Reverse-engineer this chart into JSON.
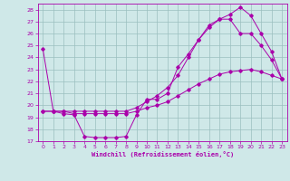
{
  "xlabel": "Windchill (Refroidissement éolien,°C)",
  "bg_color": "#cfe8e8",
  "grid_color": "#9bbfbf",
  "line_color": "#aa00aa",
  "xlim": [
    -0.5,
    23.5
  ],
  "ylim": [
    17,
    28.5
  ],
  "yticks": [
    17,
    18,
    19,
    20,
    21,
    22,
    23,
    24,
    25,
    26,
    27,
    28
  ],
  "xticks": [
    0,
    1,
    2,
    3,
    4,
    5,
    6,
    7,
    8,
    9,
    10,
    11,
    12,
    13,
    14,
    15,
    16,
    17,
    18,
    19,
    20,
    21,
    22,
    23
  ],
  "curve1_x": [
    0,
    1,
    2,
    3,
    4,
    5,
    6,
    7,
    8,
    9,
    10,
    11,
    12,
    13,
    14,
    15,
    16,
    17,
    18,
    19,
    20,
    21,
    22,
    23
  ],
  "curve1_y": [
    24.7,
    19.5,
    19.3,
    19.2,
    17.4,
    17.3,
    17.3,
    17.3,
    17.4,
    19.2,
    20.5,
    20.5,
    21.0,
    23.2,
    24.3,
    25.5,
    26.7,
    27.2,
    27.2,
    26.0,
    26.0,
    25.0,
    23.8,
    22.2
  ],
  "curve2_x": [
    0,
    1,
    2,
    3,
    4,
    5,
    6,
    7,
    8,
    9,
    10,
    11,
    12,
    13,
    14,
    15,
    16,
    17,
    18,
    19,
    20,
    21,
    22,
    23
  ],
  "curve2_y": [
    19.5,
    19.5,
    19.5,
    19.3,
    19.3,
    19.3,
    19.3,
    19.3,
    19.3,
    19.5,
    19.8,
    20.0,
    20.3,
    20.8,
    21.3,
    21.8,
    22.2,
    22.6,
    22.8,
    22.9,
    23.0,
    22.8,
    22.5,
    22.2
  ],
  "curve3_x": [
    0,
    1,
    2,
    3,
    4,
    5,
    6,
    7,
    8,
    9,
    10,
    11,
    12,
    13,
    14,
    15,
    16,
    17,
    18,
    19,
    20,
    21,
    22,
    23
  ],
  "curve3_y": [
    19.5,
    19.5,
    19.5,
    19.5,
    19.5,
    19.5,
    19.5,
    19.5,
    19.5,
    19.8,
    20.3,
    20.8,
    21.5,
    22.5,
    24.0,
    25.5,
    26.5,
    27.2,
    27.6,
    28.2,
    27.5,
    26.0,
    24.5,
    22.2
  ]
}
